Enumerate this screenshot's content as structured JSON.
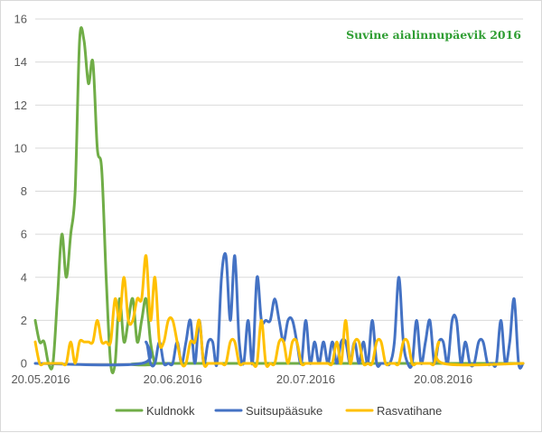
{
  "chart_data": {
    "type": "line",
    "title": "Suvine aialinnupäevik 2016",
    "title_color": "#2f9e33",
    "xlabel": "",
    "ylabel": "",
    "x_start": "20.05.2016",
    "x_end": "07.09.2016",
    "x_ticks": [
      "20.05.2016",
      "20.06.2016",
      "20.07.2016",
      "20.08.2016"
    ],
    "ylim": [
      0,
      16
    ],
    "y_ticks": [
      0,
      2,
      4,
      6,
      8,
      10,
      12,
      14,
      16
    ],
    "grid": true,
    "legend_position": "bottom",
    "series": [
      {
        "name": "Kuldnokk",
        "color": "#70ad47",
        "points": [
          [
            "20.05.2016",
            2
          ],
          [
            "21.05.2016",
            1
          ],
          [
            "22.05.2016",
            1
          ],
          [
            "23.05.2016",
            0
          ],
          [
            "24.05.2016",
            0
          ],
          [
            "25.05.2016",
            3
          ],
          [
            "26.05.2016",
            6
          ],
          [
            "27.05.2016",
            4
          ],
          [
            "28.05.2016",
            6
          ],
          [
            "29.05.2016",
            8
          ],
          [
            "30.05.2016",
            15
          ],
          [
            "31.05.2016",
            15
          ],
          [
            "01.06.2016",
            13
          ],
          [
            "02.06.2016",
            14
          ],
          [
            "03.06.2016",
            10
          ],
          [
            "04.06.2016",
            9
          ],
          [
            "05.06.2016",
            4
          ],
          [
            "06.06.2016",
            0
          ],
          [
            "07.06.2016",
            0
          ],
          [
            "08.06.2016",
            3
          ],
          [
            "09.06.2016",
            1
          ],
          [
            "10.06.2016",
            2
          ],
          [
            "11.06.2016",
            3
          ],
          [
            "12.06.2016",
            1
          ],
          [
            "13.06.2016",
            2
          ],
          [
            "14.06.2016",
            3
          ],
          [
            "15.06.2016",
            1
          ],
          [
            "16.06.2016",
            0
          ],
          [
            "17.06.2016",
            0
          ],
          [
            "07.09.2016",
            0
          ]
        ]
      },
      {
        "name": "Suitsupääsuke",
        "color": "#4472c4",
        "points": [
          [
            "20.05.2016",
            0
          ],
          [
            "13.06.2016",
            0
          ],
          [
            "14.06.2016",
            1
          ],
          [
            "15.06.2016",
            0
          ],
          [
            "16.06.2016",
            0
          ],
          [
            "17.06.2016",
            1
          ],
          [
            "18.06.2016",
            0
          ],
          [
            "19.06.2016",
            0
          ],
          [
            "20.06.2016",
            0
          ],
          [
            "21.06.2016",
            1
          ],
          [
            "22.06.2016",
            0
          ],
          [
            "23.06.2016",
            1
          ],
          [
            "24.06.2016",
            2
          ],
          [
            "25.06.2016",
            0
          ],
          [
            "26.06.2016",
            2
          ],
          [
            "27.06.2016",
            0
          ],
          [
            "28.06.2016",
            1
          ],
          [
            "29.06.2016",
            1
          ],
          [
            "30.06.2016",
            0
          ],
          [
            "01.07.2016",
            4
          ],
          [
            "02.07.2016",
            5
          ],
          [
            "03.07.2016",
            2
          ],
          [
            "04.07.2016",
            5
          ],
          [
            "05.07.2016",
            1
          ],
          [
            "06.07.2016",
            0
          ],
          [
            "07.07.2016",
            2
          ],
          [
            "08.07.2016",
            0
          ],
          [
            "09.07.2016",
            4
          ],
          [
            "10.07.2016",
            2
          ],
          [
            "11.07.2016",
            2
          ],
          [
            "12.07.2016",
            2
          ],
          [
            "13.07.2016",
            3
          ],
          [
            "14.07.2016",
            2
          ],
          [
            "15.07.2016",
            1
          ],
          [
            "16.07.2016",
            2
          ],
          [
            "17.07.2016",
            2
          ],
          [
            "18.07.2016",
            1
          ],
          [
            "19.07.2016",
            0
          ],
          [
            "20.07.2016",
            2
          ],
          [
            "21.07.2016",
            0
          ],
          [
            "22.07.2016",
            1
          ],
          [
            "23.07.2016",
            0
          ],
          [
            "24.07.2016",
            1
          ],
          [
            "25.07.2016",
            0
          ],
          [
            "26.07.2016",
            1
          ],
          [
            "27.07.2016",
            0
          ],
          [
            "28.07.2016",
            1
          ],
          [
            "29.07.2016",
            1
          ],
          [
            "30.07.2016",
            0
          ],
          [
            "31.07.2016",
            1
          ],
          [
            "01.08.2016",
            0
          ],
          [
            "02.08.2016",
            1
          ],
          [
            "03.08.2016",
            0
          ],
          [
            "04.08.2016",
            2
          ],
          [
            "05.08.2016",
            0
          ],
          [
            "06.08.2016",
            0
          ],
          [
            "07.08.2016",
            0
          ],
          [
            "08.08.2016",
            0
          ],
          [
            "09.08.2016",
            1
          ],
          [
            "10.08.2016",
            4
          ],
          [
            "11.08.2016",
            1
          ],
          [
            "12.08.2016",
            0
          ],
          [
            "13.08.2016",
            0
          ],
          [
            "14.08.2016",
            2
          ],
          [
            "15.08.2016",
            0
          ],
          [
            "16.08.2016",
            1
          ],
          [
            "17.08.2016",
            2
          ],
          [
            "18.08.2016",
            0
          ],
          [
            "19.08.2016",
            1
          ],
          [
            "20.08.2016",
            1
          ],
          [
            "21.08.2016",
            0
          ],
          [
            "22.08.2016",
            2
          ],
          [
            "23.08.2016",
            2
          ],
          [
            "24.08.2016",
            0
          ],
          [
            "25.08.2016",
            1
          ],
          [
            "26.08.2016",
            0
          ],
          [
            "27.08.2016",
            0
          ],
          [
            "28.08.2016",
            1
          ],
          [
            "29.08.2016",
            1
          ],
          [
            "30.08.2016",
            0
          ],
          [
            "31.08.2016",
            0
          ],
          [
            "01.09.2016",
            0
          ],
          [
            "02.09.2016",
            2
          ],
          [
            "03.09.2016",
            0
          ],
          [
            "04.09.2016",
            1
          ],
          [
            "05.09.2016",
            3
          ],
          [
            "06.09.2016",
            0
          ],
          [
            "07.09.2016",
            0
          ]
        ]
      },
      {
        "name": "Rasvatihane",
        "color": "#ffc000",
        "points": [
          [
            "20.05.2016",
            1
          ],
          [
            "21.05.2016",
            0
          ],
          [
            "22.05.2016",
            0
          ],
          [
            "23.05.2016",
            0
          ],
          [
            "24.05.2016",
            0
          ],
          [
            "25.05.2016",
            0
          ],
          [
            "26.05.2016",
            0
          ],
          [
            "27.05.2016",
            0
          ],
          [
            "28.05.2016",
            1
          ],
          [
            "29.05.2016",
            0
          ],
          [
            "30.05.2016",
            1
          ],
          [
            "31.05.2016",
            1
          ],
          [
            "01.06.2016",
            1
          ],
          [
            "02.06.2016",
            1
          ],
          [
            "03.06.2016",
            2
          ],
          [
            "04.06.2016",
            1
          ],
          [
            "05.06.2016",
            1
          ],
          [
            "06.06.2016",
            1
          ],
          [
            "07.06.2016",
            3
          ],
          [
            "08.06.2016",
            2
          ],
          [
            "09.06.2016",
            4
          ],
          [
            "10.06.2016",
            2
          ],
          [
            "11.06.2016",
            2
          ],
          [
            "12.06.2016",
            3
          ],
          [
            "13.06.2016",
            3
          ],
          [
            "14.06.2016",
            5
          ],
          [
            "15.06.2016",
            2
          ],
          [
            "16.06.2016",
            4
          ],
          [
            "17.06.2016",
            1
          ],
          [
            "18.06.2016",
            1
          ],
          [
            "19.06.2016",
            2
          ],
          [
            "20.06.2016",
            2
          ],
          [
            "21.06.2016",
            1
          ],
          [
            "22.06.2016",
            0
          ],
          [
            "23.06.2016",
            0
          ],
          [
            "24.06.2016",
            1
          ],
          [
            "25.06.2016",
            1
          ],
          [
            "26.06.2016",
            2
          ],
          [
            "27.06.2016",
            0
          ],
          [
            "28.06.2016",
            0
          ],
          [
            "29.06.2016",
            0
          ],
          [
            "30.06.2016",
            0
          ],
          [
            "01.07.2016",
            0
          ],
          [
            "02.07.2016",
            0
          ],
          [
            "03.07.2016",
            1
          ],
          [
            "04.07.2016",
            1
          ],
          [
            "05.07.2016",
            0
          ],
          [
            "06.07.2016",
            0
          ],
          [
            "07.07.2016",
            0
          ],
          [
            "08.07.2016",
            0
          ],
          [
            "09.07.2016",
            0
          ],
          [
            "10.07.2016",
            2
          ],
          [
            "11.07.2016",
            0
          ],
          [
            "12.07.2016",
            0
          ],
          [
            "13.07.2016",
            0
          ],
          [
            "14.07.2016",
            1
          ],
          [
            "15.07.2016",
            1
          ],
          [
            "16.07.2016",
            0
          ],
          [
            "17.07.2016",
            1
          ],
          [
            "18.07.2016",
            1
          ],
          [
            "19.07.2016",
            0
          ],
          [
            "20.07.2016",
            0
          ],
          [
            "21.07.2016",
            0
          ],
          [
            "22.07.2016",
            0
          ],
          [
            "23.07.2016",
            0
          ],
          [
            "24.07.2016",
            0
          ],
          [
            "25.07.2016",
            0
          ],
          [
            "26.07.2016",
            0
          ],
          [
            "27.07.2016",
            1
          ],
          [
            "28.07.2016",
            0
          ],
          [
            "29.07.2016",
            2
          ],
          [
            "30.07.2016",
            0
          ],
          [
            "31.07.2016",
            1
          ],
          [
            "01.08.2016",
            1
          ],
          [
            "02.08.2016",
            0
          ],
          [
            "03.08.2016",
            0
          ],
          [
            "04.08.2016",
            0
          ],
          [
            "05.08.2016",
            1
          ],
          [
            "06.08.2016",
            1
          ],
          [
            "07.08.2016",
            0
          ],
          [
            "08.08.2016",
            0
          ],
          [
            "09.08.2016",
            0
          ],
          [
            "10.08.2016",
            0
          ],
          [
            "11.08.2016",
            1
          ],
          [
            "12.08.2016",
            1
          ],
          [
            "13.08.2016",
            0
          ],
          [
            "14.08.2016",
            0
          ],
          [
            "15.08.2016",
            0
          ],
          [
            "16.08.2016",
            0
          ],
          [
            "17.08.2016",
            0
          ],
          [
            "18.08.2016",
            0
          ],
          [
            "19.08.2016",
            1
          ],
          [
            "20.08.2016",
            0
          ],
          [
            "07.09.2016",
            0
          ]
        ]
      }
    ]
  }
}
